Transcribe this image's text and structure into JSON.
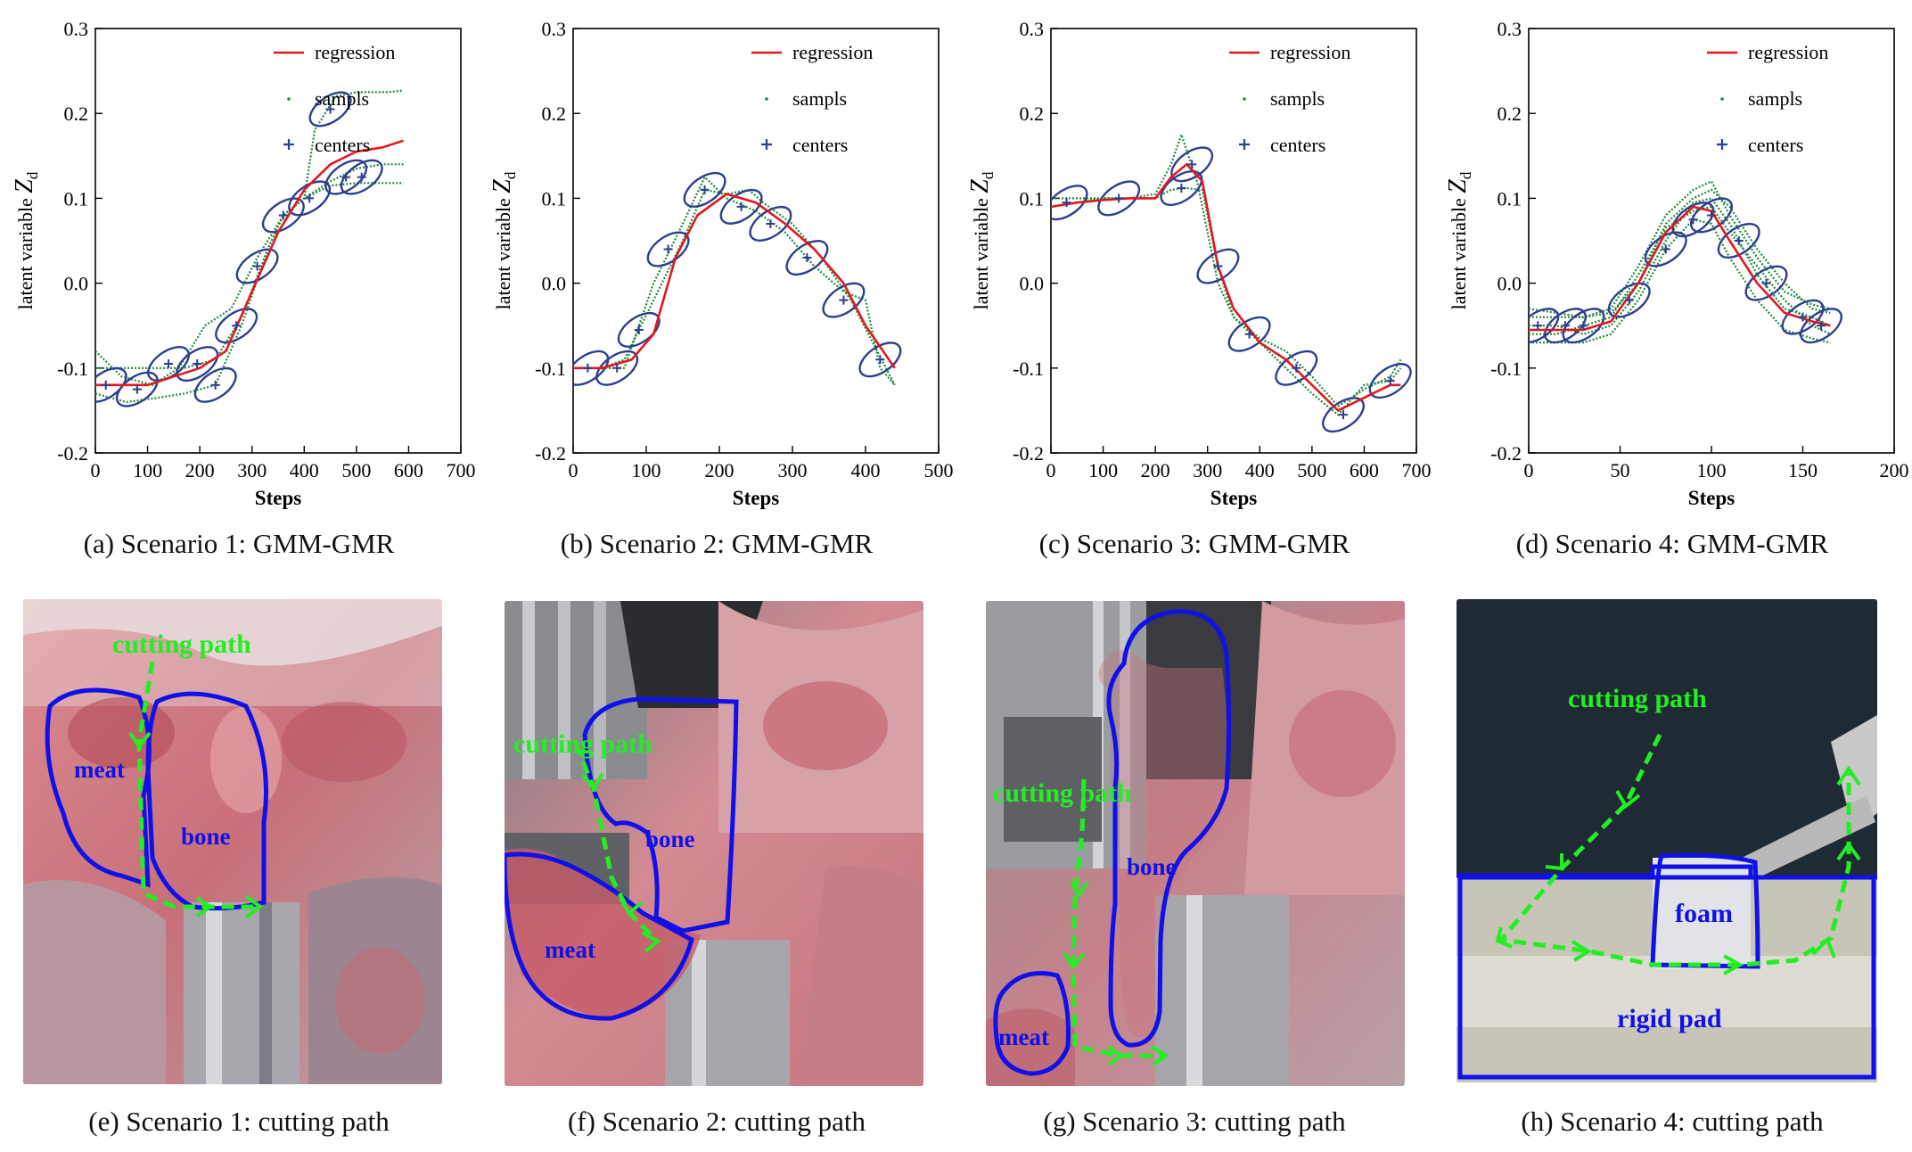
{
  "figure": {
    "charts": [
      {
        "caption": "(a)  Scenario 1: GMM-GMR"
      },
      {
        "caption": "(b)  Scenario 2: GMM-GMR"
      },
      {
        "caption": "(c)  Scenario 3: GMM-GMR"
      },
      {
        "caption": "(d)  Scenario 4: GMM-GMR"
      }
    ],
    "photos": [
      {
        "caption": "(e)  Scenario 1: cutting path",
        "labels": {
          "path": "cutting path",
          "a": "meat",
          "b": "bone"
        }
      },
      {
        "caption": "(f)  Scenario 2: cutting path",
        "labels": {
          "path": "cutting path",
          "a": "meat",
          "b": "bone"
        }
      },
      {
        "caption": "(g)  Scenario 3: cutting path",
        "labels": {
          "path": "cutting path",
          "a": "meat",
          "b": "bone"
        }
      },
      {
        "caption": "(h)  Scenario 4: cutting path",
        "labels": {
          "path": "cutting path",
          "a": "foam",
          "b": "rigid pad"
        }
      }
    ],
    "colors": {
      "regression": "#e0191e",
      "samples": "#1f8a3a",
      "centers": "#2e3f8f",
      "outline": "#1010e8",
      "path": "#22ee22"
    }
  },
  "chart_data": [
    {
      "type": "line",
      "title": "",
      "xlabel": "Steps",
      "ylabel": "latent variable Z",
      "ylabel_sub": "d",
      "xlim": [
        0,
        700
      ],
      "ylim": [
        -0.2,
        0.3
      ],
      "xticks": [
        "0",
        "100",
        "200",
        "300",
        "400",
        "500",
        "600",
        "700"
      ],
      "yticks": [
        "-0.2",
        "-0.1",
        "0.0",
        "0.1",
        "0.2",
        "0.3"
      ],
      "legend": [
        "regression",
        "sampls",
        "centers"
      ],
      "regression": {
        "x": [
          0,
          50,
          100,
          150,
          200,
          250,
          300,
          350,
          400,
          450,
          500,
          550,
          590
        ],
        "y": [
          -0.12,
          -0.12,
          -0.12,
          -0.11,
          -0.1,
          -0.08,
          -0.01,
          0.06,
          0.11,
          0.14,
          0.155,
          0.16,
          0.168
        ]
      },
      "samples": [
        {
          "x": [
            0,
            60,
            120,
            170,
            230,
            280,
            330,
            360,
            400,
            420,
            460,
            500,
            560,
            590
          ],
          "y": [
            -0.13,
            -0.14,
            -0.135,
            -0.13,
            -0.12,
            -0.05,
            0.04,
            0.08,
            0.1,
            0.18,
            0.22,
            0.225,
            0.225,
            0.227
          ]
        },
        {
          "x": [
            0,
            60,
            120,
            170,
            230,
            280,
            330,
            360,
            400,
            450,
            500,
            550,
            590
          ],
          "y": [
            -0.1,
            -0.1,
            -0.1,
            -0.1,
            -0.09,
            -0.04,
            0.04,
            0.08,
            0.1,
            0.115,
            0.118,
            0.118,
            0.118
          ]
        },
        {
          "x": [
            0,
            50,
            110,
            160,
            210,
            260,
            310,
            360,
            400,
            450,
            500,
            550,
            590
          ],
          "y": [
            -0.08,
            -0.11,
            -0.12,
            -0.1,
            -0.05,
            -0.03,
            0.03,
            0.08,
            0.1,
            0.12,
            0.135,
            0.14,
            0.14
          ]
        }
      ],
      "centers": {
        "x": [
          20,
          80,
          140,
          195,
          230,
          270,
          310,
          360,
          410,
          450,
          480,
          510
        ],
        "y": [
          -0.12,
          -0.125,
          -0.095,
          -0.095,
          -0.12,
          -0.05,
          0.02,
          0.08,
          0.1,
          0.205,
          0.125,
          0.125
        ]
      }
    },
    {
      "type": "line",
      "title": "",
      "xlabel": "Steps",
      "ylabel": "latent variable Z",
      "ylabel_sub": "d",
      "xlim": [
        0,
        500
      ],
      "ylim": [
        -0.2,
        0.3
      ],
      "xticks": [
        "0",
        "100",
        "200",
        "300",
        "400",
        "500"
      ],
      "yticks": [
        "-0.2",
        "-0.1",
        "0.0",
        "0.1",
        "0.2",
        "0.3"
      ],
      "legend": [
        "regression",
        "sampls",
        "centers"
      ],
      "regression": {
        "x": [
          0,
          40,
          80,
          110,
          140,
          170,
          210,
          250,
          290,
          330,
          370,
          400,
          440
        ],
        "y": [
          -0.1,
          -0.1,
          -0.09,
          -0.06,
          0.03,
          0.08,
          0.105,
          0.095,
          0.07,
          0.04,
          0.0,
          -0.05,
          -0.1
        ]
      },
      "samples": [
        {
          "x": [
            0,
            40,
            70,
            110,
            150,
            180,
            210,
            250,
            290,
            330,
            370,
            400,
            420,
            440
          ],
          "y": [
            -0.1,
            -0.1,
            -0.1,
            0.0,
            0.07,
            0.125,
            0.1,
            0.085,
            0.06,
            0.02,
            -0.01,
            -0.02,
            -0.1,
            -0.12
          ]
        },
        {
          "x": [
            0,
            40,
            70,
            110,
            150,
            180,
            210,
            240,
            260,
            300,
            340,
            380,
            410,
            440
          ],
          "y": [
            -0.1,
            -0.1,
            -0.09,
            -0.02,
            0.05,
            0.11,
            0.105,
            0.11,
            0.095,
            0.07,
            0.03,
            -0.02,
            -0.07,
            -0.12
          ]
        }
      ],
      "centers": {
        "x": [
          20,
          60,
          90,
          130,
          180,
          230,
          270,
          320,
          370,
          420
        ],
        "y": [
          -0.1,
          -0.1,
          -0.055,
          0.04,
          0.11,
          0.09,
          0.07,
          0.03,
          -0.02,
          -0.09
        ]
      }
    },
    {
      "type": "line",
      "title": "",
      "xlabel": "Steps",
      "ylabel": "latent variable Z",
      "ylabel_sub": "d",
      "xlim": [
        0,
        700
      ],
      "ylim": [
        -0.2,
        0.3
      ],
      "xticks": [
        "0",
        "100",
        "200",
        "300",
        "400",
        "500",
        "600",
        "700"
      ],
      "yticks": [
        "-0.2",
        "-0.1",
        "0.0",
        "0.1",
        "0.2",
        "0.3"
      ],
      "legend": [
        "regression",
        "sampls",
        "centers"
      ],
      "regression": {
        "x": [
          0,
          50,
          100,
          150,
          200,
          230,
          260,
          290,
          320,
          350,
          400,
          450,
          500,
          550,
          600,
          650,
          670
        ],
        "y": [
          0.09,
          0.095,
          0.098,
          0.1,
          0.1,
          0.125,
          0.14,
          0.12,
          0.02,
          -0.03,
          -0.07,
          -0.09,
          -0.12,
          -0.15,
          -0.135,
          -0.12,
          -0.12
        ]
      },
      "samples": [
        {
          "x": [
            0,
            50,
            100,
            150,
            200,
            230,
            250,
            280,
            320,
            350,
            400,
            450,
            500,
            550,
            600,
            650,
            670
          ],
          "y": [
            0.1,
            0.1,
            0.1,
            0.1,
            0.105,
            0.14,
            0.175,
            0.12,
            0.0,
            -0.04,
            -0.07,
            -0.1,
            -0.13,
            -0.155,
            -0.12,
            -0.115,
            -0.1
          ]
        },
        {
          "x": [
            0,
            50,
            100,
            150,
            200,
            230,
            260,
            290,
            320,
            350,
            400,
            450,
            500,
            550,
            600,
            650,
            670
          ],
          "y": [
            0.09,
            0.095,
            0.1,
            0.1,
            0.1,
            0.11,
            0.112,
            0.11,
            0.02,
            -0.04,
            -0.065,
            -0.08,
            -0.11,
            -0.145,
            -0.125,
            -0.11,
            -0.09
          ]
        }
      ],
      "centers": {
        "x": [
          30,
          130,
          250,
          270,
          320,
          380,
          470,
          560,
          650
        ],
        "y": [
          0.095,
          0.1,
          0.112,
          0.14,
          0.02,
          -0.06,
          -0.1,
          -0.155,
          -0.115
        ]
      }
    },
    {
      "type": "line",
      "title": "",
      "xlabel": "Steps",
      "ylabel": "latent variable Z",
      "ylabel_sub": "d",
      "xlim": [
        0,
        200
      ],
      "ylim": [
        -0.2,
        0.3
      ],
      "xticks": [
        "0",
        "50",
        "100",
        "150",
        "200"
      ],
      "yticks": [
        "-0.2",
        "-0.1",
        "0.0",
        "0.1",
        "0.2",
        "0.3"
      ],
      "legend": [
        "regression",
        "sampls",
        "centers"
      ],
      "regression": {
        "x": [
          0,
          15,
          30,
          45,
          60,
          75,
          90,
          100,
          110,
          125,
          140,
          155,
          165
        ],
        "y": [
          -0.055,
          -0.055,
          -0.055,
          -0.045,
          0.0,
          0.06,
          0.09,
          0.085,
          0.05,
          0.0,
          -0.035,
          -0.045,
          -0.05
        ]
      },
      "samples": [
        {
          "x": [
            0,
            15,
            30,
            45,
            60,
            75,
            90,
            100,
            110,
            125,
            140,
            155,
            165
          ],
          "y": [
            -0.04,
            -0.04,
            -0.04,
            -0.03,
            0.02,
            0.08,
            0.11,
            0.12,
            0.08,
            0.03,
            -0.01,
            -0.025,
            -0.03
          ]
        },
        {
          "x": [
            0,
            15,
            30,
            45,
            60,
            75,
            90,
            100,
            110,
            125,
            140,
            155,
            165
          ],
          "y": [
            -0.07,
            -0.07,
            -0.07,
            -0.06,
            -0.02,
            0.04,
            0.075,
            0.07,
            0.03,
            -0.02,
            -0.055,
            -0.065,
            -0.07
          ]
        },
        {
          "x": [
            0,
            15,
            30,
            45,
            60,
            75,
            90,
            100,
            110,
            125,
            140,
            155,
            165
          ],
          "y": [
            -0.05,
            -0.05,
            -0.06,
            -0.05,
            -0.01,
            0.05,
            0.095,
            0.1,
            0.07,
            0.01,
            -0.03,
            -0.04,
            -0.05
          ]
        },
        {
          "x": [
            0,
            15,
            30,
            45,
            60,
            75,
            90,
            100,
            110,
            125,
            140,
            155,
            165
          ],
          "y": [
            -0.06,
            -0.06,
            -0.05,
            -0.04,
            0.01,
            0.065,
            0.085,
            0.09,
            0.06,
            0.02,
            -0.02,
            -0.05,
            -0.06
          ]
        },
        {
          "x": [
            0,
            15,
            30,
            45,
            60,
            75,
            90,
            100,
            110,
            125,
            140,
            155,
            165
          ],
          "y": [
            -0.03,
            -0.035,
            -0.04,
            -0.035,
            0.0,
            0.07,
            0.1,
            0.11,
            0.09,
            0.04,
            0.0,
            -0.03,
            -0.035
          ]
        }
      ],
      "centers": {
        "x": [
          5,
          20,
          30,
          55,
          75,
          90,
          100,
          115,
          130,
          150,
          160
        ],
        "y": [
          -0.05,
          -0.05,
          -0.05,
          -0.02,
          0.04,
          0.075,
          0.08,
          0.05,
          0.0,
          -0.04,
          -0.05
        ]
      }
    }
  ]
}
